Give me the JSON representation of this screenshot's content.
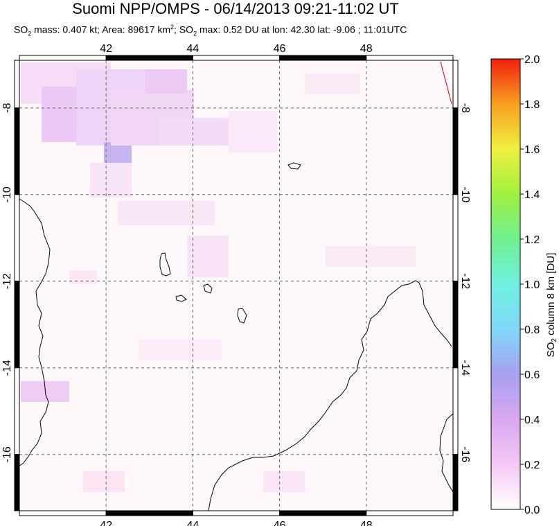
{
  "title": "Suomi NPP/OMPS - 06/14/2013 09:21-11:02 UT",
  "subtitle": {
    "p1": "SO",
    "sub1": "2",
    "p2": " mass: 0.407 kt; Area: 89617 km",
    "sup1": "2",
    "p3": "; SO",
    "sub2": "2",
    "p4": " max: 0.52 DU at lon: 42.30 lat: -9.06 ; 11:01UTC"
  },
  "map": {
    "lon_range": [
      40,
      50
    ],
    "lat_range": [
      -17.3,
      -6.9
    ],
    "lon_ticks": [
      "42",
      "44",
      "46",
      "48"
    ],
    "lat_ticks": [
      "-8",
      "-10",
      "-12",
      "-14",
      "-16"
    ],
    "grid": "dashed"
  },
  "colorbar": {
    "label": "SO2 column 8 km [DU]",
    "label_parts": {
      "a": "SO",
      "b": "2",
      "c": " column 8 km [DU]"
    },
    "ticks": [
      "0.0",
      "0.2",
      "0.4",
      "0.6",
      "0.8",
      "1.0",
      "1.2",
      "1.4",
      "1.6",
      "1.8",
      "2.0"
    ],
    "range": [
      0,
      2
    ],
    "colors": [
      "#ffffff",
      "#f4c8f4",
      "#d8a8f0",
      "#a8a0f0",
      "#80d8f8",
      "#70f0e0",
      "#70f090",
      "#a0f040",
      "#f0f040",
      "#f8a020",
      "#f02010"
    ]
  }
}
